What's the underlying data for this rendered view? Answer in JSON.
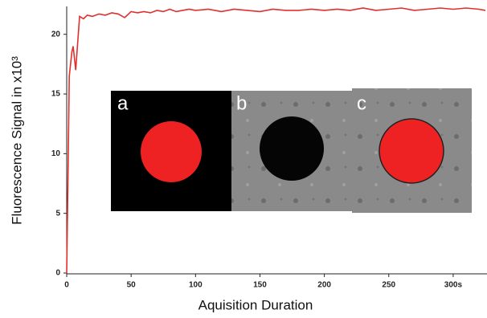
{
  "chart_data": {
    "type": "line",
    "x_label": "Aquisition Duration",
    "y_label": "Fluorescence Signal in x10³",
    "x": [
      0,
      1,
      2,
      3,
      4,
      5,
      6,
      7,
      8,
      9,
      10,
      13,
      16,
      20,
      25,
      30,
      35,
      40,
      45,
      50,
      55,
      60,
      65,
      70,
      75,
      80,
      85,
      90,
      95,
      100,
      110,
      120,
      130,
      140,
      150,
      160,
      170,
      180,
      190,
      200,
      210,
      220,
      230,
      240,
      250,
      260,
      270,
      280,
      290,
      300,
      310,
      320,
      325
    ],
    "series": [
      {
        "color": "#e0302e",
        "values": [
          0,
          8,
          16.5,
          17.5,
          18.5,
          19,
          18,
          17,
          18.5,
          20,
          21.5,
          21.3,
          21.6,
          21.5,
          21.7,
          21.6,
          21.8,
          21.7,
          21.4,
          21.9,
          21.8,
          21.9,
          21.8,
          22,
          21.9,
          22.1,
          21.9,
          22,
          22.1,
          22,
          22.1,
          21.9,
          22.1,
          22,
          21.9,
          22.1,
          22,
          22,
          22.1,
          22,
          22.1,
          22,
          22.2,
          22,
          22.1,
          22.2,
          22,
          22.1,
          22.2,
          22.1,
          22.2,
          22.1,
          22
        ]
      }
    ],
    "xlim": [
      0,
      325
    ],
    "ylim": [
      0,
      22.2
    ],
    "xticks": [
      0,
      50,
      100,
      150,
      200,
      250,
      {
        "value": 300,
        "label": "300s"
      }
    ],
    "yticks": [
      0,
      5,
      10,
      15,
      20
    ],
    "panel_labels": [
      "a",
      "b",
      "c"
    ]
  }
}
